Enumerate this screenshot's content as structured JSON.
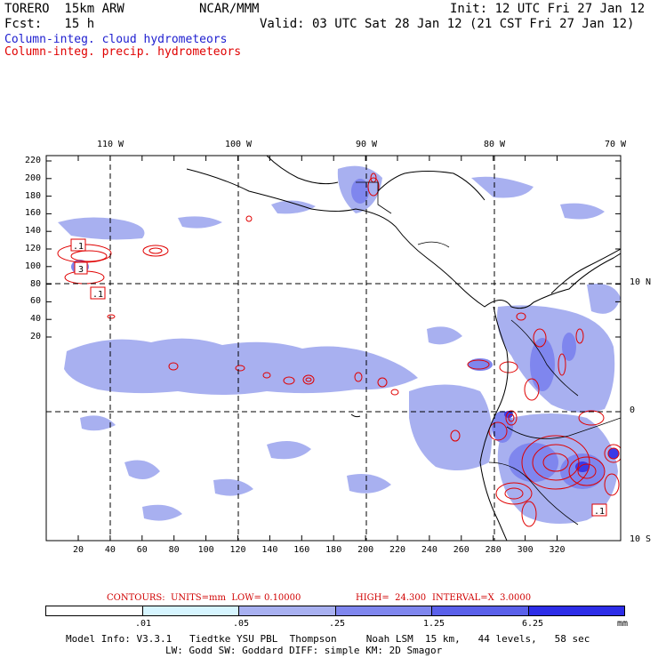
{
  "header": {
    "model": "TORERO  15km ARW",
    "org": "NCAR/MMM",
    "init": "Init: 12 UTC Fri 27 Jan 12",
    "fcst": "Fcst:   15 h",
    "valid": "Valid: 03 UTC Sat 28 Jan 12 (21 CST Fri 27 Jan 12)",
    "legend_cloud": "Column-integ. cloud hydrometeors",
    "legend_precip": "Column-integ. precip. hydrometeors"
  },
  "colors": {
    "cloud_text": "#2020d0",
    "precip": "#e00000",
    "shade1": "#d6f5ff",
    "shade2": "#a8b0f0",
    "shade3": "#7f86ee",
    "shade4": "#5a60ea",
    "shade5": "#2d2de8",
    "shade6": "#0000ee"
  },
  "map": {
    "y_ticks": [
      "220",
      "200",
      "180",
      "160",
      "140",
      "120",
      "100",
      "80",
      "60",
      "40",
      "20"
    ],
    "x_ticks": [
      "20",
      "40",
      "60",
      "80",
      "100",
      "120",
      "140",
      "160",
      "180",
      "200",
      "220",
      "240",
      "260",
      "280",
      "300",
      "320"
    ],
    "lon_labels": [
      "110 W",
      "100 W",
      "90 W",
      "80 W",
      "70 W"
    ],
    "lat_labels": [
      "10 N",
      "0",
      "10 S"
    ],
    "box_labels": [
      ".1",
      "3",
      ".1",
      ".1"
    ]
  },
  "contour_info": {
    "contours": "CONTOURS:  UNITS=mm  LOW= 0.10000",
    "high": "HIGH=  24.300",
    "interval": "INTERVAL=X  3.0000"
  },
  "colorbar": {
    "labels": [
      ".01",
      ".05",
      ".25",
      "1.25",
      "6.25"
    ],
    "units": "mm"
  },
  "footer": {
    "line1": "Model Info: V3.3.1   Tiedtke YSU PBL  Thompson     Noah LSM  15 km,   44 levels,   58 sec",
    "line2": "LW: Godd SW: Goddard DIFF: simple KM: 2D Smagor"
  }
}
